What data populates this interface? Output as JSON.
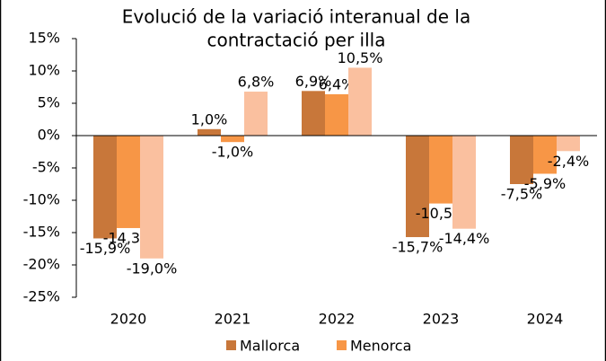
{
  "chart_data": {
    "type": "bar",
    "title": [
      "Evolució de la variació interanual de la",
      "contractació per illa"
    ],
    "categories": [
      "2020",
      "2021",
      "2022",
      "2023",
      "2024"
    ],
    "series": [
      {
        "name": "Mallorca",
        "color": "#c8773a",
        "values": [
          -15.9,
          1.0,
          6.9,
          -15.7,
          -7.5
        ],
        "value_labels": [
          "-15,9%",
          "1,0%",
          "6,9%",
          "-15,7%",
          "-7,5%"
        ]
      },
      {
        "name": "Menorca",
        "color": "#f79646",
        "values": [
          -14.3,
          -1.0,
          6.4,
          -10.5,
          -5.9
        ],
        "value_labels": [
          "-14,3%",
          "-1,0%",
          "6,4%",
          "-10,5%",
          "-5,9%"
        ]
      },
      {
        "color": "#fac09f",
        "values": [
          -19.0,
          6.8,
          10.5,
          -14.4,
          -2.4
        ],
        "value_labels": [
          "-19,0%",
          "6,8%",
          "10,5%",
          "-14,4%",
          "-2,4%"
        ]
      }
    ],
    "ylim": [
      -25,
      15
    ],
    "yticks": [
      {
        "value": -25,
        "label": "-25%"
      },
      {
        "value": -20,
        "label": "-20%"
      },
      {
        "value": -15,
        "label": "-15%"
      },
      {
        "value": -10,
        "label": "-10%"
      },
      {
        "value": -5,
        "label": "-5%"
      },
      {
        "value": 0,
        "label": "0%"
      },
      {
        "value": 5,
        "label": "5%"
      },
      {
        "value": 10,
        "label": "10%"
      },
      {
        "value": 15,
        "label": "15%"
      }
    ],
    "legend": "bottom"
  }
}
